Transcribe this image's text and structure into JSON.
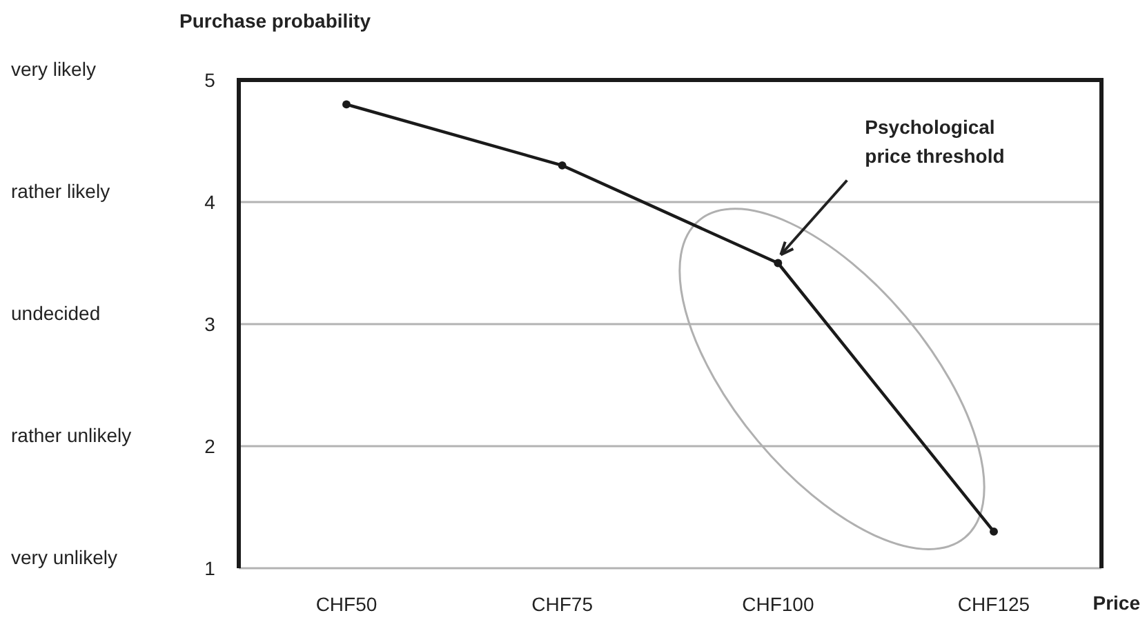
{
  "chart_data": {
    "type": "line",
    "ylabel": "Purchase probability",
    "xlabel": "Price",
    "categories": [
      "CHF50",
      "CHF75",
      "CHF100",
      "CHF125"
    ],
    "series": [
      {
        "color": "#1a1a1a",
        "values": [
          4.8,
          4.3,
          3.5,
          1.3
        ]
      }
    ],
    "ylim": [
      1,
      5
    ],
    "yticks": [
      1,
      2,
      3,
      4,
      5
    ],
    "annotations": [
      "very likely",
      "rather likely",
      "undecided",
      "rather unlikely",
      "very unlikely",
      {
        "text": "Psychological\nprice threshold",
        "x": "CHF100",
        "y": 3.5
      }
    ],
    "grid": "y",
    "marker": "circle",
    "line_style": "solid"
  }
}
